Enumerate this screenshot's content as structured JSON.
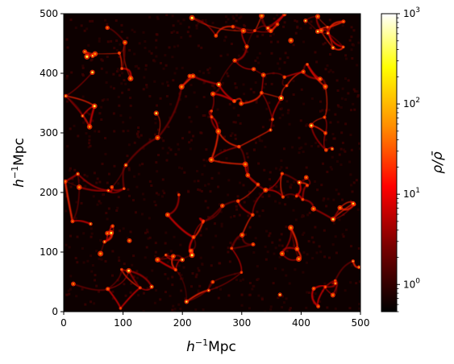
{
  "chart_data": {
    "type": "heatmap",
    "title": "",
    "xlabel": {
      "base": "h",
      "sup": "−1",
      "rest": "Mpc"
    },
    "ylabel": {
      "base": "h",
      "sup": "−1",
      "rest": "Mpc"
    },
    "xlim": [
      0,
      500
    ],
    "ylim": [
      0,
      500
    ],
    "xticks": [
      0,
      100,
      200,
      300,
      400,
      500
    ],
    "yticks": [
      0,
      100,
      200,
      300,
      400,
      500
    ],
    "colorbar": {
      "label": "ρ/ρ̄",
      "scale": "log",
      "range": [
        0.5,
        1000
      ],
      "ticks": [
        {
          "value": 1,
          "base": "10",
          "exp": "0"
        },
        {
          "value": 10,
          "base": "10",
          "exp": "1"
        },
        {
          "value": 100,
          "base": "10",
          "exp": "2"
        },
        {
          "value": 1000,
          "base": "10",
          "exp": "3"
        }
      ],
      "colormap": "hot",
      "stops": [
        "#000000",
        "#7a0000",
        "#ff0000",
        "#ff8c00",
        "#ffff00",
        "#ffffff"
      ]
    },
    "field": "cosmic-web density slice"
  }
}
